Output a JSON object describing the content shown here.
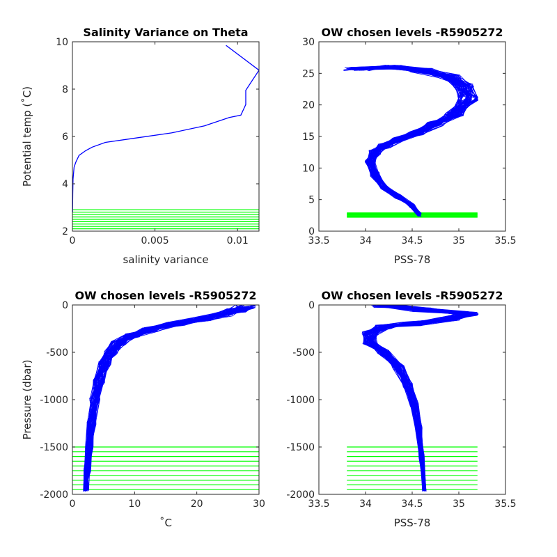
{
  "figure": {
    "colors": {
      "profile": "#0000ff",
      "levels": "#00ff00",
      "axis": "#262626",
      "background": "#ffffff"
    }
  },
  "chart_data": [
    {
      "type": "line",
      "title": "Salinity Variance on Theta",
      "xlabel": "salinity variance",
      "ylabel": "Potential temp (˚C)",
      "xlim": [
        0,
        0.0113
      ],
      "ylim": [
        2,
        10
      ],
      "xticks": [
        0,
        0.005,
        0.01
      ],
      "xticklabels": [
        "0",
        "0.005",
        "0.01"
      ],
      "yticks": [
        2,
        4,
        6,
        8,
        10
      ],
      "yticklabels": [
        "2",
        "4",
        "6",
        "8",
        "10"
      ],
      "series": [
        {
          "x": [
            1e-05,
            2e-05,
            4e-05,
            0.0001,
            0.0002,
            0.0004,
            0.0008,
            0.0012,
            0.002,
            0.004,
            0.006,
            0.008,
            0.0095,
            0.0102,
            0.0105,
            0.0105,
            0.0113,
            0.0093
          ],
          "y": [
            2.8,
            3.6,
            4.2,
            4.7,
            4.9,
            5.2,
            5.4,
            5.55,
            5.75,
            5.95,
            6.15,
            6.45,
            6.8,
            6.9,
            7.35,
            7.95,
            8.8,
            9.85
          ]
        }
      ],
      "levels": {
        "xrange": [
          0,
          0.0113
        ],
        "y": [
          2.1,
          2.2,
          2.3,
          2.4,
          2.5,
          2.6,
          2.7,
          2.8,
          2.9
        ]
      }
    },
    {
      "type": "line",
      "title": "OW chosen levels -R5905272",
      "xlabel": "PSS-78",
      "ylabel": "",
      "xlim": [
        33.5,
        35.5
      ],
      "ylim": [
        0,
        30
      ],
      "xticks": [
        33.5,
        34,
        34.5,
        35,
        35.5
      ],
      "xticklabels": [
        "33.5",
        "34",
        "34.5",
        "35",
        "35.5"
      ],
      "yticks": [
        0,
        5,
        10,
        15,
        20,
        25,
        30
      ],
      "yticklabels": [
        "0",
        "5",
        "10",
        "15",
        "20",
        "25",
        "30"
      ],
      "series": [
        {
          "x": [
            34.58,
            34.5,
            34.35,
            34.2,
            34.1,
            34.05,
            34.1,
            34.2,
            34.35,
            34.55,
            34.75,
            34.95,
            35.1,
            35.05,
            34.9,
            34.6,
            34.3,
            33.9
          ],
          "y": [
            2.6,
            4,
            5.5,
            7,
            9,
            11,
            12.5,
            13.5,
            14.5,
            15.5,
            17,
            18.5,
            21,
            23,
            24.5,
            25.5,
            26,
            25.7
          ]
        }
      ],
      "levels": {
        "xrange": [
          33.8,
          35.2
        ],
        "y": [
          2.2,
          2.3,
          2.4,
          2.5,
          2.6,
          2.7,
          2.8,
          2.9
        ]
      }
    },
    {
      "type": "line",
      "title": "OW chosen levels -R5905272",
      "xlabel": "˚C",
      "ylabel": "Pressure (dbar)",
      "xlim": [
        0,
        30
      ],
      "ylim": [
        -2000,
        0
      ],
      "xticks": [
        0,
        10,
        20,
        30
      ],
      "xticklabels": [
        "0",
        "10",
        "20",
        "30"
      ],
      "yticks": [
        -2000,
        -1500,
        -1000,
        -500,
        0
      ],
      "yticklabels": [
        "-2000",
        "-1500",
        "-1000",
        "-500",
        "0"
      ],
      "series": [
        {
          "x": [
            2.2,
            2.4,
            2.7,
            3.1,
            3.6,
            4.3,
            5.2,
            6.2,
            7.5,
            9.5,
            12.5,
            16.5,
            21,
            24,
            26.5,
            27.5
          ],
          "y": [
            -1950,
            -1750,
            -1500,
            -1250,
            -1000,
            -800,
            -620,
            -500,
            -400,
            -320,
            -260,
            -200,
            -150,
            -100,
            -60,
            -20
          ]
        }
      ],
      "levels": {
        "xrange": [
          0,
          30
        ],
        "y": [
          -1950,
          -1900,
          -1850,
          -1800,
          -1750,
          -1700,
          -1650,
          -1600,
          -1550,
          -1500
        ]
      }
    },
    {
      "type": "line",
      "title": "OW chosen levels -R5905272",
      "xlabel": "PSS-78",
      "ylabel": "",
      "xlim": [
        33.5,
        35.5
      ],
      "ylim": [
        -2000,
        0
      ],
      "xticks": [
        33.5,
        34,
        34.5,
        35,
        35.5
      ],
      "xticklabels": [
        "33.5",
        "34",
        "34.5",
        "35",
        "35.5"
      ],
      "yticks": [
        -2000,
        -1500,
        -1000,
        -500,
        0
      ],
      "yticklabels": [
        "-2000",
        "-1500",
        "-1000",
        "-500",
        "0"
      ],
      "series": [
        {
          "x": [
            34.63,
            34.6,
            34.57,
            34.52,
            34.45,
            34.35,
            34.2,
            34.05,
            34.05,
            34.2,
            34.5,
            34.9,
            35.1,
            34.6,
            34.2
          ],
          "y": [
            -1950,
            -1600,
            -1300,
            -1050,
            -850,
            -650,
            -500,
            -400,
            -300,
            -230,
            -200,
            -150,
            -90,
            -50,
            -10
          ]
        }
      ],
      "levels": {
        "xrange": [
          33.8,
          35.2
        ],
        "y": [
          -1950,
          -1900,
          -1850,
          -1800,
          -1750,
          -1700,
          -1650,
          -1600,
          -1550,
          -1500
        ]
      }
    }
  ]
}
